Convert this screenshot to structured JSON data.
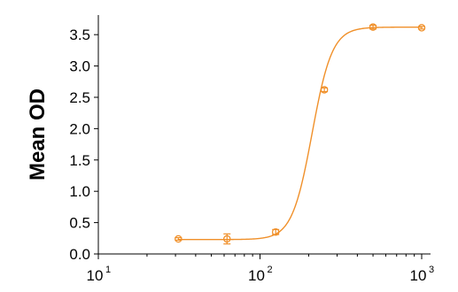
{
  "chart_data": {
    "type": "scatter",
    "title": "",
    "xlabel": "",
    "ylabel": "Mean OD",
    "x_scale": "log",
    "xlim": [
      10,
      1000
    ],
    "ylim": [
      0,
      3.7
    ],
    "x_ticks": [
      {
        "value": 10,
        "base": "10",
        "exp": "1"
      },
      {
        "value": 100,
        "base": "10",
        "exp": "2"
      },
      {
        "value": 1000,
        "base": "10",
        "exp": "3"
      }
    ],
    "y_ticks": [
      "0.0",
      "0.5",
      "1.0",
      "1.5",
      "2.0",
      "2.5",
      "3.0",
      "3.5"
    ],
    "grid": false,
    "color": "#f0902a",
    "series": [
      {
        "x": [
          31.25,
          62.5,
          125,
          250,
          500,
          1000
        ],
        "y": [
          0.24,
          0.24,
          0.35,
          2.62,
          3.62,
          3.61
        ],
        "error": [
          0.02,
          0.08,
          0.04,
          0.03,
          0.03,
          0.02
        ]
      }
    ],
    "fit_curve": {
      "type": "4PL",
      "bottom": 0.23,
      "top": 3.62,
      "ec50": 210,
      "hill": 7
    }
  }
}
